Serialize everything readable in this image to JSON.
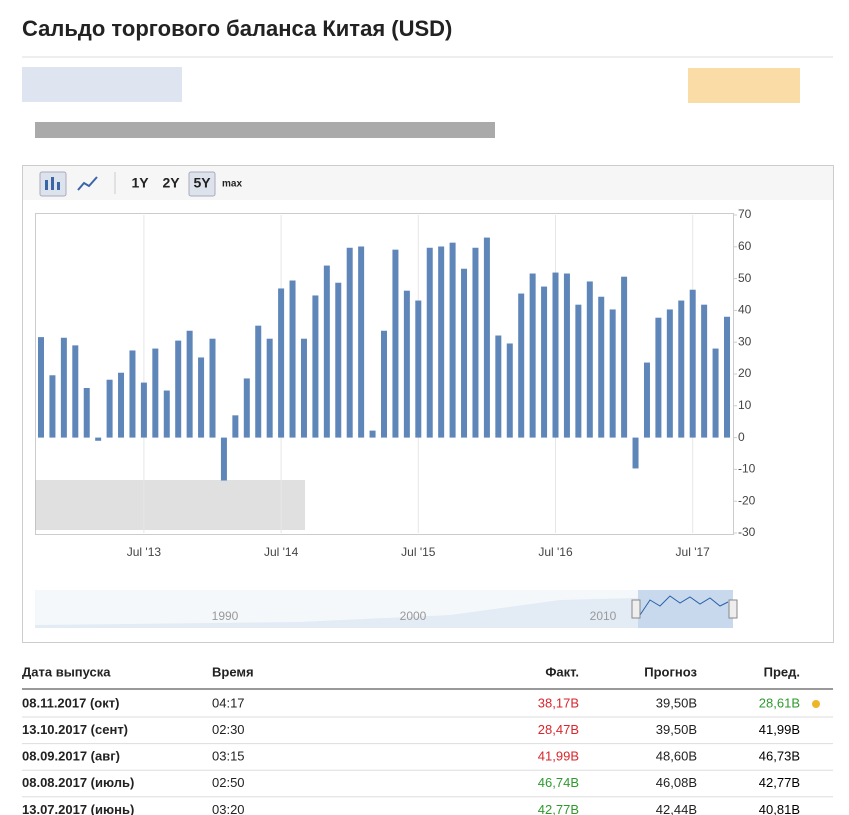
{
  "header": {
    "title": "Сальдо торгового баланса Китая (USD)"
  },
  "toolbar": {
    "ranges": [
      "1Y",
      "2Y",
      "5Y",
      "max"
    ],
    "active": "5Y"
  },
  "chart_data": {
    "type": "bar",
    "color": "#5f86b8",
    "categories": [
      null,
      null,
      null,
      null,
      null,
      null,
      null,
      null,
      null,
      "Jul '13",
      null,
      null,
      null,
      null,
      null,
      null,
      null,
      null,
      null,
      null,
      null,
      "Jul '14",
      null,
      null,
      null,
      null,
      null,
      null,
      null,
      null,
      null,
      null,
      null,
      "Jul '15",
      null,
      null,
      null,
      null,
      null,
      null,
      null,
      null,
      null,
      null,
      null,
      "Jul '16",
      null,
      null,
      null,
      null,
      null,
      null,
      null,
      null,
      null,
      null,
      null,
      "Jul '17",
      null,
      null,
      null
    ],
    "values": [
      31.6,
      19.6,
      31.4,
      29,
      15.6,
      -1,
      18.2,
      20.4,
      27.4,
      17.3,
      28,
      14.8,
      30.5,
      33.6,
      25.2,
      31.1,
      -13.5,
      7,
      18.6,
      35.2,
      31.1,
      46.9,
      49.4,
      31.1,
      44.7,
      54.1,
      48.7,
      59.7,
      60.1,
      2.2,
      33.6,
      59.1,
      46.2,
      43.1,
      59.7,
      60.1,
      61.3,
      53.1,
      59.7,
      62.9,
      32.1,
      29.6,
      45.3,
      51.6,
      47.5,
      51.9,
      51.6,
      41.8,
      49.1,
      44.3,
      40.3,
      50.6,
      -9.7,
      23.6,
      37.7,
      40.3,
      43.1,
      46.5,
      41.8,
      28,
      38
    ],
    "ylim": [
      -30,
      70
    ],
    "yticks": [
      -30,
      -20,
      -10,
      0,
      10,
      20,
      30,
      40,
      50,
      60,
      70
    ],
    "xgrid": true,
    "navigator_labels": [
      "1990",
      "2000",
      "2010"
    ]
  },
  "table": {
    "columns": [
      "Дата выпуска",
      "Время",
      "Факт.",
      "Прогноз",
      "Пред."
    ],
    "rows": [
      [
        "08.11.2017 (окт)",
        "04:17",
        "38,17B",
        "39,50B",
        "28,61B"
      ],
      [
        "13.10.2017 (сент)",
        "02:30",
        "28,47B",
        "39,50B",
        "41,99B"
      ],
      [
        "08.09.2017 (авг)",
        "03:15",
        "41,99B",
        "48,60B",
        "46,73B"
      ],
      [
        "08.08.2017 (июль)",
        "02:50",
        "46,74B",
        "46,08B",
        "42,77B"
      ],
      [
        "13.07.2017 (июнь)",
        "03:20",
        "42,77B",
        "42,44B",
        "40,81B"
      ]
    ],
    "fact_colors": [
      "#d9262c",
      "#d9262c",
      "#d9262c",
      "#2e9a2e",
      "#2e9a2e"
    ],
    "prev_colors": [
      "#2e9a2e",
      "#000000",
      "#000000",
      "#000000",
      "#000000"
    ]
  }
}
